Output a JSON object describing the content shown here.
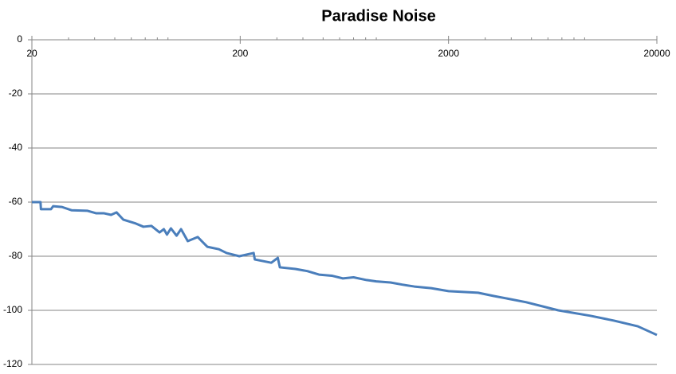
{
  "chart_data": {
    "type": "line",
    "title": "Paradise Noise",
    "xscale": "log",
    "xlim": [
      20,
      20000
    ],
    "xticks": [
      20,
      200,
      2000,
      20000
    ],
    "xminorticks": [
      30,
      40,
      50,
      60,
      70,
      80,
      90,
      300,
      400,
      500,
      600,
      700,
      800,
      900,
      3000,
      4000,
      5000,
      6000,
      7000,
      8000,
      9000
    ],
    "ylim": [
      -120,
      0
    ],
    "yticks": [
      0,
      -20,
      -40,
      -60,
      -80,
      -100,
      -120
    ],
    "grid": true,
    "series": [
      {
        "name": "Paradise Noise",
        "color": "#4a7ebb",
        "x": [
          20,
          22,
          22.1,
          24.7,
          25.3,
          27.9,
          31,
          37,
          40.6,
          44.2,
          48,
          51,
          55,
          63,
          68.6,
          75,
          82,
          86,
          89,
          93,
          99,
          104,
          112,
          125,
          139,
          158,
          172,
          198,
          232,
          235,
          282,
          303,
          310,
          368,
          420,
          478,
          550,
          622,
          700,
          808,
          900,
          1053,
          1200,
          1371,
          1650,
          2000,
          2772,
          3300,
          4720,
          6730,
          9580,
          12450,
          16200,
          20000
        ],
        "values": [
          -60,
          -60,
          -62.6,
          -62.6,
          -61.5,
          -61.8,
          -63,
          -63.2,
          -64.1,
          -64.1,
          -64.7,
          -63.8,
          -66.5,
          -67.9,
          -69.1,
          -68.8,
          -71.2,
          -70,
          -72,
          -69.7,
          -72.4,
          -70,
          -74.4,
          -72.9,
          -76.5,
          -77.4,
          -78.8,
          -80,
          -78.8,
          -81.2,
          -82.4,
          -80.6,
          -84.1,
          -84.7,
          -85.5,
          -86.8,
          -87.2,
          -88.2,
          -87.8,
          -88.8,
          -89.3,
          -89.7,
          -90.5,
          -91.2,
          -91.8,
          -92.9,
          -93.5,
          -94.7,
          -97,
          -100,
          -102,
          -103.8,
          -105.9,
          -109.1
        ]
      }
    ]
  }
}
